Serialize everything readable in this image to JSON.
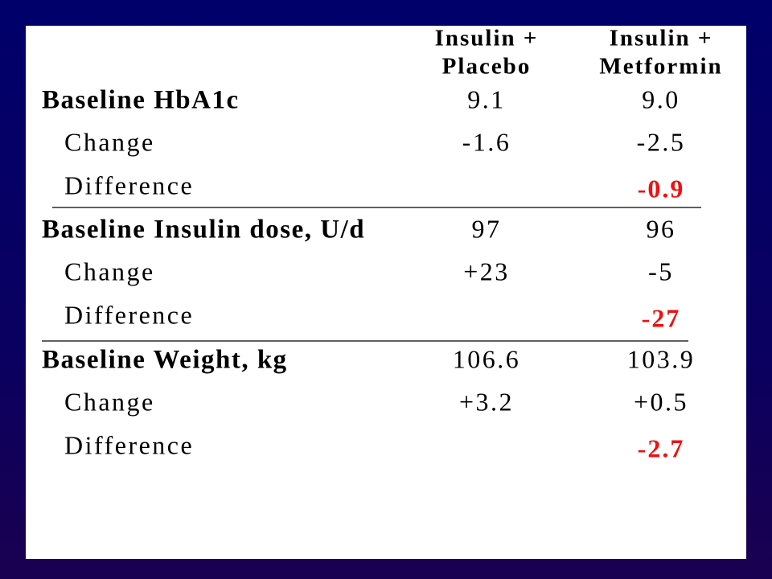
{
  "table": {
    "columns": [
      [
        "Insulin +",
        "Placebo"
      ],
      [
        "Insulin +",
        "Metformin"
      ]
    ],
    "groups": [
      {
        "label": "Baseline HbA1c",
        "baseline": [
          "9.1",
          "9.0"
        ],
        "change": {
          "label": "Change",
          "values": [
            "-1.6",
            "-2.5"
          ]
        },
        "difference": {
          "label": "Difference",
          "value": "-0.9"
        }
      },
      {
        "label": "Baseline Insulin dose, U/d",
        "baseline": [
          "97",
          "96"
        ],
        "change": {
          "label": "Change",
          "values": [
            "+23",
            "-5"
          ]
        },
        "difference": {
          "label": "Difference",
          "value": "-27"
        }
      },
      {
        "label": "Baseline Weight, kg",
        "baseline": [
          "106.6",
          "103.9"
        ],
        "change": {
          "label": "Change",
          "values": [
            "+3.2",
            "+0.5"
          ]
        },
        "difference": {
          "label": "Difference",
          "value": "-2.7"
        }
      }
    ]
  }
}
